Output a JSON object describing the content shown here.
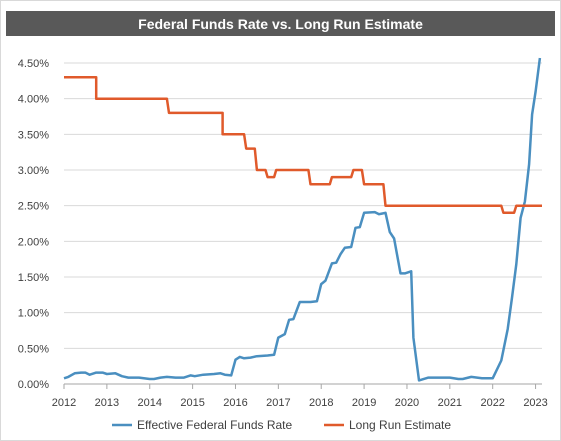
{
  "chart_data": {
    "type": "line",
    "title": "Federal Funds Rate vs. Long Run Estimate",
    "xlabel": "",
    "ylabel": "",
    "xlim": [
      2012,
      2023.15
    ],
    "ylim": [
      0,
      4.5
    ],
    "x_ticks": [
      "2012",
      "2013",
      "2014",
      "2015",
      "2016",
      "2017",
      "2018",
      "2019",
      "2020",
      "2021",
      "2022",
      "2023"
    ],
    "y_ticks": [
      "0.00%",
      "0.50%",
      "1.00%",
      "1.50%",
      "2.00%",
      "2.50%",
      "3.00%",
      "3.50%",
      "4.00%",
      "4.50%"
    ],
    "grid": "horizontal",
    "legend_position": "bottom",
    "series": [
      {
        "name": "Effective Federal Funds Rate",
        "color": "#4a8fc0",
        "points": [
          [
            2012.0,
            0.08
          ],
          [
            2012.1,
            0.1
          ],
          [
            2012.25,
            0.15
          ],
          [
            2012.4,
            0.16
          ],
          [
            2012.5,
            0.16
          ],
          [
            2012.6,
            0.13
          ],
          [
            2012.75,
            0.16
          ],
          [
            2012.9,
            0.16
          ],
          [
            2013.0,
            0.14
          ],
          [
            2013.2,
            0.15
          ],
          [
            2013.35,
            0.11
          ],
          [
            2013.5,
            0.09
          ],
          [
            2013.75,
            0.09
          ],
          [
            2014.0,
            0.07
          ],
          [
            2014.1,
            0.07
          ],
          [
            2014.25,
            0.09
          ],
          [
            2014.4,
            0.1
          ],
          [
            2014.6,
            0.09
          ],
          [
            2014.8,
            0.09
          ],
          [
            2014.95,
            0.12
          ],
          [
            2015.05,
            0.11
          ],
          [
            2015.25,
            0.13
          ],
          [
            2015.5,
            0.14
          ],
          [
            2015.65,
            0.15
          ],
          [
            2015.75,
            0.13
          ],
          [
            2015.9,
            0.12
          ],
          [
            2016.0,
            0.34
          ],
          [
            2016.1,
            0.38
          ],
          [
            2016.2,
            0.36
          ],
          [
            2016.35,
            0.37
          ],
          [
            2016.5,
            0.39
          ],
          [
            2016.75,
            0.4
          ],
          [
            2016.9,
            0.41
          ],
          [
            2017.0,
            0.65
          ],
          [
            2017.15,
            0.7
          ],
          [
            2017.25,
            0.9
          ],
          [
            2017.35,
            0.91
          ],
          [
            2017.5,
            1.15
          ],
          [
            2017.75,
            1.15
          ],
          [
            2017.9,
            1.16
          ],
          [
            2018.0,
            1.4
          ],
          [
            2018.1,
            1.45
          ],
          [
            2018.25,
            1.69
          ],
          [
            2018.35,
            1.7
          ],
          [
            2018.45,
            1.82
          ],
          [
            2018.55,
            1.91
          ],
          [
            2018.7,
            1.92
          ],
          [
            2018.8,
            2.19
          ],
          [
            2018.9,
            2.2
          ],
          [
            2019.0,
            2.4
          ],
          [
            2019.25,
            2.41
          ],
          [
            2019.35,
            2.38
          ],
          [
            2019.5,
            2.4
          ],
          [
            2019.6,
            2.13
          ],
          [
            2019.7,
            2.04
          ],
          [
            2019.85,
            1.55
          ],
          [
            2019.95,
            1.55
          ],
          [
            2020.1,
            1.58
          ],
          [
            2020.15,
            0.65
          ],
          [
            2020.28,
            0.05
          ],
          [
            2020.5,
            0.09
          ],
          [
            2020.75,
            0.09
          ],
          [
            2021.0,
            0.09
          ],
          [
            2021.2,
            0.07
          ],
          [
            2021.3,
            0.07
          ],
          [
            2021.5,
            0.1
          ],
          [
            2021.75,
            0.08
          ],
          [
            2022.0,
            0.08
          ],
          [
            2022.2,
            0.33
          ],
          [
            2022.35,
            0.77
          ],
          [
            2022.45,
            1.21
          ],
          [
            2022.55,
            1.68
          ],
          [
            2022.65,
            2.33
          ],
          [
            2022.75,
            2.56
          ],
          [
            2022.85,
            3.08
          ],
          [
            2022.92,
            3.78
          ],
          [
            2023.0,
            4.1
          ],
          [
            2023.1,
            4.57
          ]
        ]
      },
      {
        "name": "Long Run Estimate",
        "color": "#e05a2b",
        "points": [
          [
            2012.0,
            4.3
          ],
          [
            2012.75,
            4.3
          ],
          [
            2012.75,
            4.0
          ],
          [
            2014.4,
            4.0
          ],
          [
            2014.45,
            3.8
          ],
          [
            2015.7,
            3.8
          ],
          [
            2015.7,
            3.5
          ],
          [
            2016.2,
            3.5
          ],
          [
            2016.25,
            3.3
          ],
          [
            2016.45,
            3.3
          ],
          [
            2016.5,
            3.0
          ],
          [
            2016.7,
            3.0
          ],
          [
            2016.75,
            2.9
          ],
          [
            2016.9,
            2.9
          ],
          [
            2016.95,
            3.0
          ],
          [
            2017.7,
            3.0
          ],
          [
            2017.75,
            2.8
          ],
          [
            2018.2,
            2.8
          ],
          [
            2018.25,
            2.9
          ],
          [
            2018.7,
            2.9
          ],
          [
            2018.75,
            3.0
          ],
          [
            2018.95,
            3.0
          ],
          [
            2019.0,
            2.8
          ],
          [
            2019.45,
            2.8
          ],
          [
            2019.5,
            2.5
          ],
          [
            2022.2,
            2.5
          ],
          [
            2022.25,
            2.4
          ],
          [
            2022.5,
            2.4
          ],
          [
            2022.55,
            2.5
          ],
          [
            2023.15,
            2.5
          ]
        ]
      }
    ]
  }
}
